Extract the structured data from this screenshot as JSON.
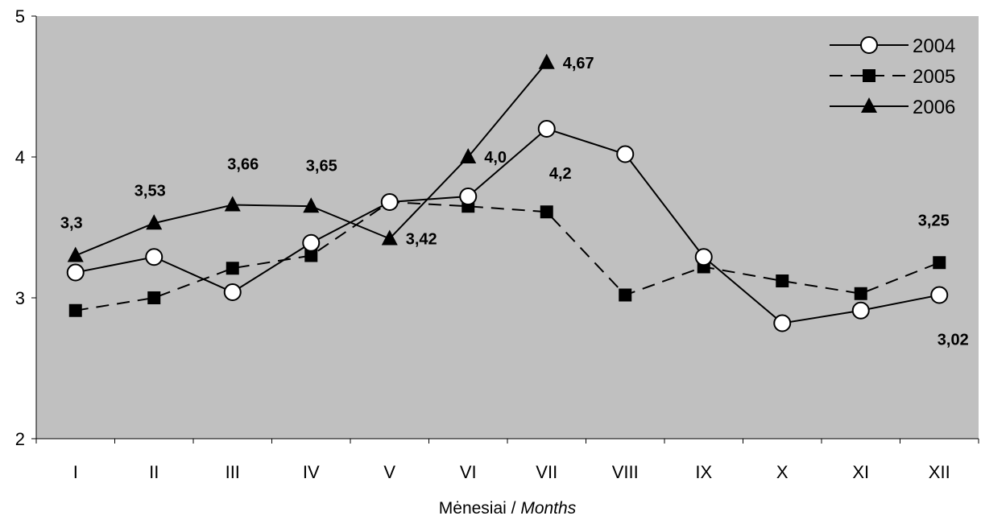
{
  "chart_data": {
    "type": "line",
    "categories": [
      "I",
      "II",
      "III",
      "IV",
      "V",
      "VI",
      "VII",
      "VIII",
      "IX",
      "X",
      "XI",
      "XII"
    ],
    "ylim": [
      2,
      5
    ],
    "yticks": [
      "2",
      "3",
      "4",
      "5"
    ],
    "xlabel_prefix": "Mėnesiai / ",
    "xlabel_italic": "Months",
    "ylabel": "",
    "grid": false,
    "plot_background": "#c0c0c0",
    "legend_position": "top-right",
    "series": [
      {
        "name": "2004",
        "marker": "circle-open",
        "line_style": "solid",
        "values": [
          3.18,
          3.29,
          3.04,
          3.39,
          3.68,
          3.72,
          4.2,
          4.02,
          3.29,
          2.82,
          2.91,
          3.02
        ]
      },
      {
        "name": "2005",
        "marker": "square",
        "line_style": "dashed",
        "values": [
          2.91,
          3.0,
          3.21,
          3.3,
          3.68,
          3.65,
          3.61,
          3.02,
          3.22,
          3.12,
          3.03,
          3.25
        ]
      },
      {
        "name": "2006",
        "marker": "triangle",
        "line_style": "solid",
        "values": [
          3.3,
          3.53,
          3.66,
          3.65,
          3.42,
          4.0,
          4.67,
          null,
          null,
          null,
          null,
          null
        ]
      }
    ],
    "annotations": [
      {
        "text": "3,3",
        "series": "2006",
        "index": 0,
        "place": "above-left"
      },
      {
        "text": "3,53",
        "series": "2006",
        "index": 1,
        "place": "above-left"
      },
      {
        "text": "3,66",
        "series": "2006",
        "index": 2,
        "place": "above-right"
      },
      {
        "text": "3,65",
        "series": "2006",
        "index": 3,
        "place": "above-right"
      },
      {
        "text": "3,42",
        "series": "2006",
        "index": 4,
        "place": "right"
      },
      {
        "text": "4,0",
        "series": "2006",
        "index": 5,
        "place": "right"
      },
      {
        "text": "4,67",
        "series": "2006",
        "index": 6,
        "place": "right"
      },
      {
        "text": "4,2",
        "series": "2004",
        "index": 6,
        "place": "below"
      },
      {
        "text": "3,25",
        "series": "2005",
        "index": 11,
        "place": "above"
      },
      {
        "text": "3,02",
        "series": "2004",
        "index": 11,
        "place": "below"
      }
    ]
  }
}
